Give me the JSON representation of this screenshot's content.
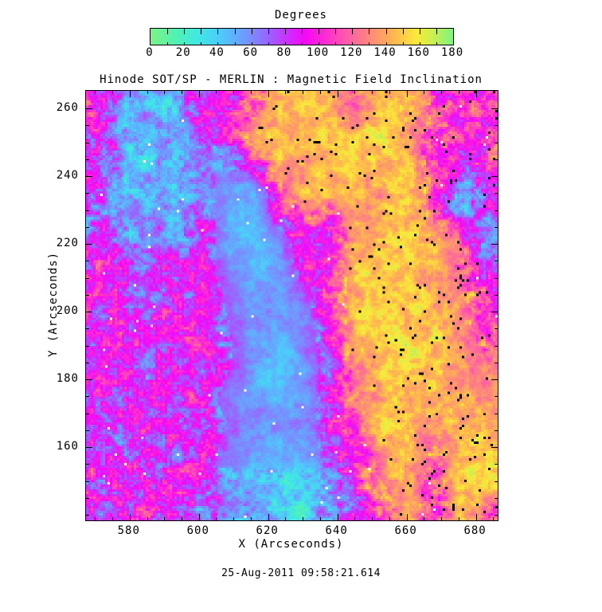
{
  "title": "Hinode SOT/SP - MERLIN : Magnetic Field Inclination",
  "timestamp": "25-Aug-2011 09:58:21.614",
  "colorbar": {
    "label": "Degrees",
    "min": 0,
    "max": 180,
    "major_ticks": [
      0,
      20,
      40,
      60,
      80,
      100,
      120,
      140,
      160,
      180
    ],
    "minor_step": 10
  },
  "axes": {
    "x": {
      "label": "X (Arcseconds)",
      "min": 567.4,
      "max": 686.3,
      "major_ticks": [
        580,
        600,
        620,
        640,
        660,
        680
      ],
      "minor_step": 5
    },
    "y": {
      "label": "Y (Arcseconds)",
      "min": 138.4,
      "max": 265.2,
      "major_ticks": [
        160,
        180,
        200,
        220,
        240,
        260
      ],
      "minor_step": 5
    }
  },
  "chart_data": {
    "type": "heatmap",
    "title": "Hinode SOT/SP - MERLIN : Magnetic Field Inclination",
    "xlabel": "X (Arcseconds)",
    "ylabel": "Y (Arcseconds)",
    "value_units": "Degrees",
    "value_range": [
      0,
      180
    ],
    "x_range": [
      567.4,
      686.3
    ],
    "y_range": [
      138.4,
      265.2
    ],
    "grid_cols": 16,
    "grid_rows": 16,
    "grid_row_order": "top-to-bottom (y = 265 arcsec first)",
    "inclination_grid": [
      [
        100,
        50,
        40,
        50,
        95,
        105,
        110,
        145,
        150,
        140,
        120,
        150,
        140,
        120,
        100,
        100
      ],
      [
        95,
        55,
        45,
        50,
        70,
        105,
        140,
        150,
        145,
        150,
        140,
        155,
        135,
        115,
        95,
        100
      ],
      [
        85,
        50,
        45,
        50,
        55,
        65,
        110,
        150,
        140,
        145,
        150,
        150,
        140,
        110,
        95,
        105
      ],
      [
        70,
        55,
        48,
        50,
        60,
        55,
        50,
        120,
        145,
        150,
        140,
        145,
        150,
        105,
        60,
        85
      ],
      [
        75,
        60,
        55,
        60,
        70,
        50,
        45,
        100,
        130,
        110,
        145,
        140,
        150,
        110,
        55,
        70
      ],
      [
        90,
        70,
        60,
        65,
        75,
        55,
        45,
        60,
        100,
        105,
        140,
        145,
        150,
        140,
        130,
        60
      ],
      [
        95,
        85,
        75,
        80,
        85,
        60,
        50,
        55,
        95,
        105,
        145,
        155,
        145,
        145,
        120,
        70
      ],
      [
        88,
        85,
        82,
        80,
        90,
        70,
        55,
        60,
        70,
        100,
        140,
        150,
        150,
        145,
        130,
        110
      ],
      [
        90,
        85,
        88,
        85,
        85,
        75,
        60,
        55,
        65,
        100,
        145,
        155,
        150,
        150,
        135,
        105
      ],
      [
        85,
        88,
        85,
        88,
        90,
        80,
        55,
        50,
        60,
        95,
        140,
        150,
        155,
        150,
        140,
        120
      ],
      [
        88,
        85,
        88,
        82,
        90,
        75,
        50,
        45,
        55,
        90,
        135,
        150,
        150,
        148,
        135,
        130
      ],
      [
        85,
        88,
        82,
        85,
        80,
        70,
        55,
        50,
        60,
        95,
        120,
        145,
        150,
        145,
        135,
        140
      ],
      [
        90,
        85,
        85,
        82,
        88,
        75,
        60,
        55,
        65,
        90,
        110,
        150,
        145,
        130,
        140,
        145
      ],
      [
        88,
        82,
        88,
        85,
        85,
        65,
        55,
        45,
        50,
        70,
        100,
        140,
        150,
        115,
        150,
        150
      ],
      [
        92,
        88,
        85,
        88,
        80,
        60,
        50,
        40,
        45,
        60,
        100,
        125,
        145,
        110,
        150,
        150
      ],
      [
        90,
        92,
        88,
        85,
        75,
        60,
        55,
        45,
        40,
        55,
        95,
        110,
        140,
        100,
        150,
        120
      ]
    ],
    "colormap_anchors": [
      [
        0,
        "#7cf383"
      ],
      [
        14,
        "#53f2b0"
      ],
      [
        28,
        "#3fe9e4"
      ],
      [
        42,
        "#4ec9fa"
      ],
      [
        56,
        "#6f9aff"
      ],
      [
        70,
        "#9a64ff"
      ],
      [
        82,
        "#cf2cff"
      ],
      [
        92,
        "#f607f6"
      ],
      [
        104,
        "#ff2cd0"
      ],
      [
        118,
        "#ff5fa5"
      ],
      [
        132,
        "#ff8d76"
      ],
      [
        146,
        "#ffbc4a"
      ],
      [
        158,
        "#fbe93a"
      ],
      [
        168,
        "#c9f04f"
      ],
      [
        180,
        "#7cf383"
      ]
    ],
    "render": {
      "logical_w": 172,
      "logical_h": 180,
      "noise_amp": 52,
      "rough_default": 1.0,
      "rough_cyan": 0.75,
      "rough_plage": 0.5,
      "rough_spot": 0.35,
      "plage_threshold": 125,
      "cyan_threshold": 65,
      "spot_cols": [
        5,
        8
      ],
      "spot_rows": [
        3,
        13
      ],
      "spot_max_base": 75,
      "black_speckle_p": 0.02,
      "white_speckle_p": 0.0038,
      "speckle_black": "#000000",
      "speckle_white": "#ffffff"
    }
  },
  "frame": {
    "background": "#ffffff",
    "line_color": "#000000"
  }
}
